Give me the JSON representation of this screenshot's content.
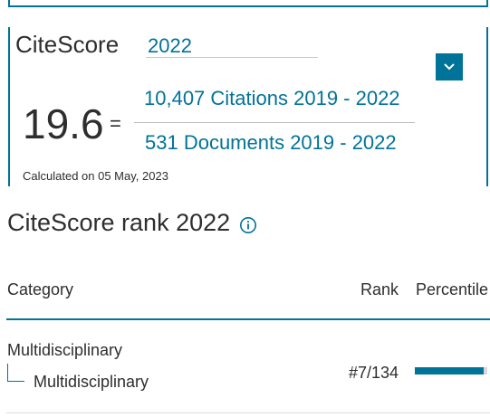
{
  "citescore": {
    "title": "CiteScore",
    "year_select": {
      "value": "2022",
      "icon": "chevron-down-icon"
    },
    "score": "19.6",
    "equals": "=",
    "citations": "10,407 Citations 2019 - 2022",
    "documents": "531 Documents 2019 - 2022",
    "calculated": "Calculated on 05 May, 2023"
  },
  "rank": {
    "title": "CiteScore rank 2022",
    "info_icon": "info-icon",
    "columns": {
      "category": "Category",
      "rank": "Rank",
      "percentile": "Percentile"
    },
    "rows": [
      {
        "parent": "Multidisciplinary",
        "child": "Multidisciplinary",
        "rank": "#7/134",
        "percentile_fraction": 0.95
      }
    ]
  },
  "colors": {
    "accent": "#007398",
    "text": "#2e2e2e",
    "track": "#d9d9d9"
  }
}
